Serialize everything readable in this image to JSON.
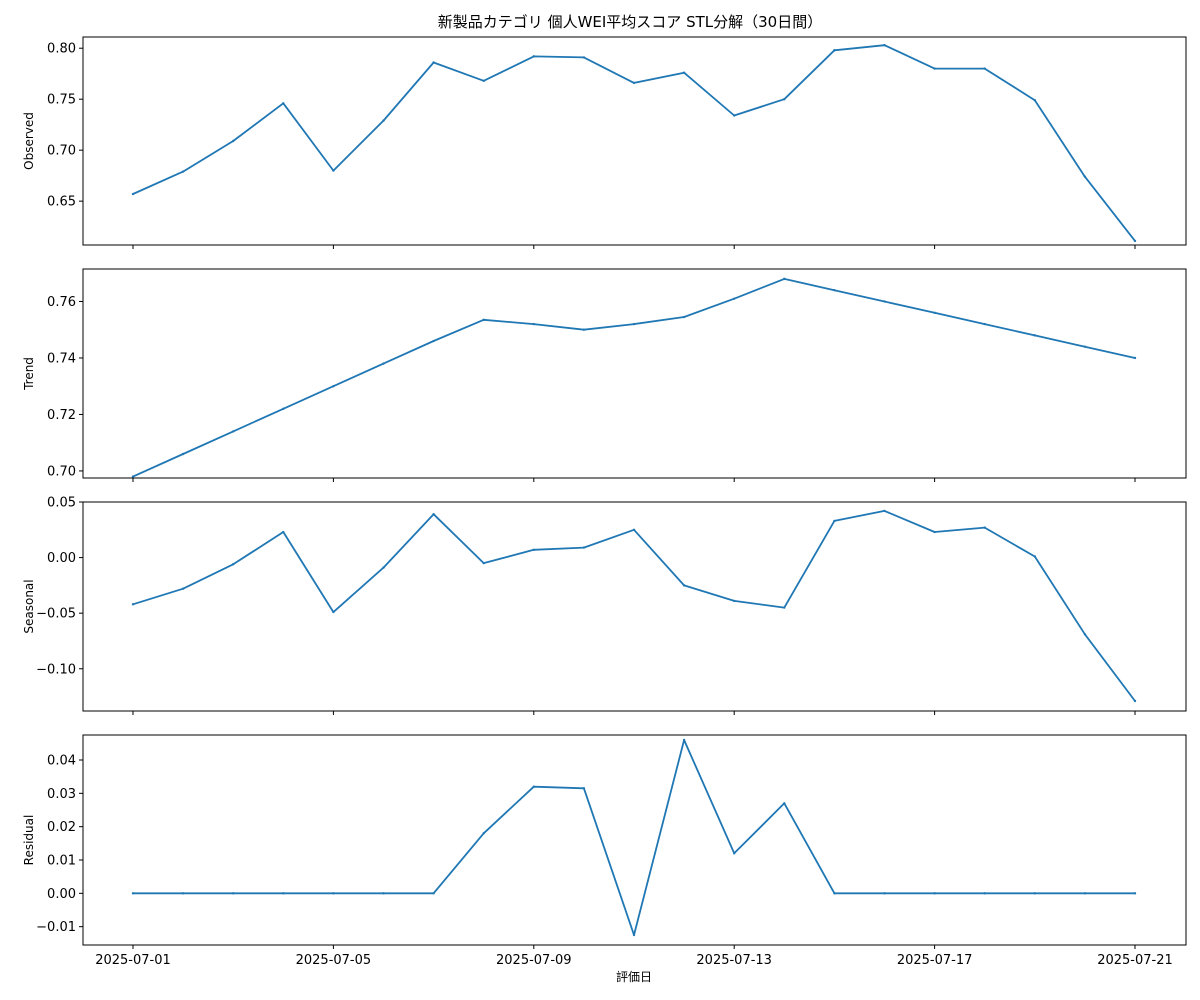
{
  "chart_data": {
    "type": "line",
    "title": "新製品カテゴリ 個人WEI平均スコア STL分解（30日間）",
    "xlabel": "評価日",
    "x": [
      "2025-07-01",
      "2025-07-02",
      "2025-07-03",
      "2025-07-04",
      "2025-07-05",
      "2025-07-06",
      "2025-07-07",
      "2025-07-08",
      "2025-07-09",
      "2025-07-10",
      "2025-07-11",
      "2025-07-12",
      "2025-07-13",
      "2025-07-14",
      "2025-07-15",
      "2025-07-16",
      "2025-07-17",
      "2025-07-18",
      "2025-07-19",
      "2025-07-20",
      "2025-07-21"
    ],
    "xticks": [
      "2025-07-01",
      "2025-07-05",
      "2025-07-09",
      "2025-07-13",
      "2025-07-17",
      "2025-07-21"
    ],
    "color": "#1f77b4",
    "panels": [
      {
        "ylabel": "Observed",
        "ylim": [
          0.607,
          0.811
        ],
        "yticks": [
          "0.65",
          "0.70",
          "0.75",
          "0.80"
        ],
        "values": [
          0.657,
          0.679,
          0.709,
          0.746,
          0.68,
          0.729,
          0.786,
          0.768,
          0.792,
          0.791,
          0.766,
          0.776,
          0.734,
          0.75,
          0.798,
          0.803,
          0.78,
          0.78,
          0.749,
          0.674,
          0.611
        ]
      },
      {
        "ylabel": "Trend",
        "ylim": [
          0.6975,
          0.7715
        ],
        "yticks": [
          "0.70",
          "0.72",
          "0.74",
          "0.76"
        ],
        "values": [
          0.698,
          0.706,
          0.714,
          0.722,
          0.73,
          0.738,
          0.746,
          0.7535,
          0.752,
          0.75,
          0.752,
          0.7545,
          0.761,
          0.768,
          0.764,
          0.76,
          0.756,
          0.752,
          0.748,
          0.744,
          0.74
        ]
      },
      {
        "ylabel": "Seasonal",
        "ylim": [
          -0.138,
          0.05
        ],
        "yticks": [
          "0.05",
          "0.00",
          "−0.05",
          "−0.10"
        ],
        "values": [
          -0.042,
          -0.028,
          -0.006,
          0.023,
          -0.049,
          -0.009,
          0.039,
          -0.005,
          0.007,
          0.009,
          0.025,
          -0.025,
          -0.039,
          -0.045,
          0.033,
          0.042,
          0.023,
          0.027,
          0.001,
          -0.069,
          -0.129
        ]
      },
      {
        "ylabel": "Residual",
        "ylim": [
          -0.0155,
          0.0475
        ],
        "yticks": [
          "0.04",
          "0.03",
          "0.02",
          "0.01",
          "0.00",
          "−0.01"
        ],
        "values": [
          0,
          0,
          0,
          0,
          0,
          0,
          0,
          0.018,
          0.032,
          0.0315,
          -0.0125,
          0.046,
          0.012,
          0.027,
          0,
          0,
          0,
          0,
          0,
          0,
          0
        ]
      }
    ]
  }
}
